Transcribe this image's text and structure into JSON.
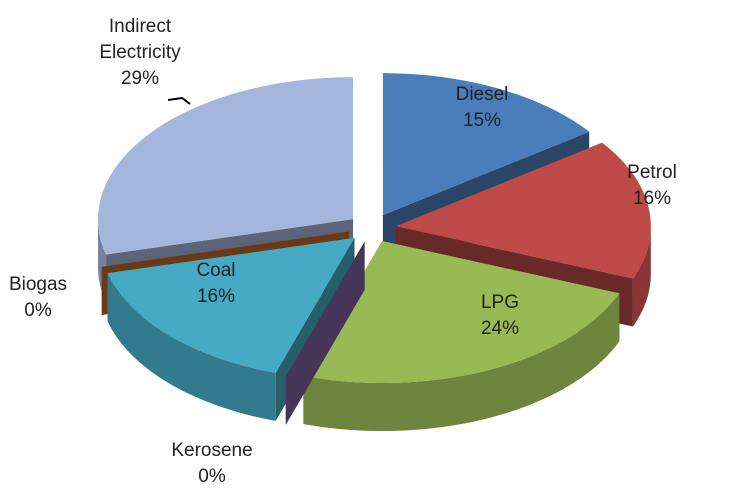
{
  "chart_data": {
    "type": "pie",
    "categories": [
      "Diesel",
      "Petrol",
      "LPG",
      "Kerosene",
      "Coal",
      "Biogas",
      "Indirect Electricity"
    ],
    "values": [
      15,
      16,
      24,
      0,
      16,
      0,
      29
    ],
    "value_labels": [
      "15%",
      "16%",
      "24%",
      "0%",
      "16%",
      "0%",
      "29%"
    ],
    "colors": [
      "#4a7ebb",
      "#be4b48",
      "#98b954",
      "#7d60a0",
      "#46aac5",
      "#c0692a",
      "#a5b6dc"
    ]
  }
}
